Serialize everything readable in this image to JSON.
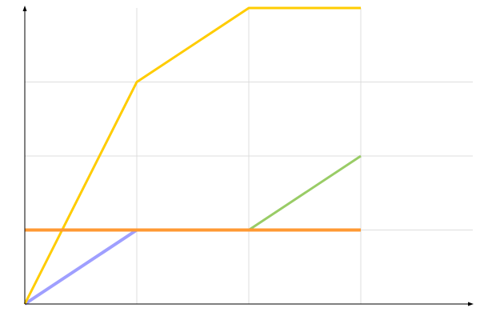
{
  "chart_data": {
    "type": "line",
    "title": "",
    "xlabel": "",
    "ylabel": "",
    "x": [
      0,
      1,
      2,
      3
    ],
    "xlim": [
      0,
      4
    ],
    "ylim": [
      0,
      4
    ],
    "grid": true,
    "legend": "none",
    "series": [
      {
        "values": [
          0,
          1,
          1,
          1
        ],
        "color": "#9f9fff"
      },
      {
        "values": [
          1,
          1,
          1,
          2
        ],
        "color": "#99cc66"
      },
      {
        "values": [
          0,
          3,
          4,
          4
        ],
        "color": "#ffcc00"
      },
      {
        "values": [
          1,
          1,
          1,
          1
        ],
        "color": "#ff9933"
      }
    ]
  }
}
